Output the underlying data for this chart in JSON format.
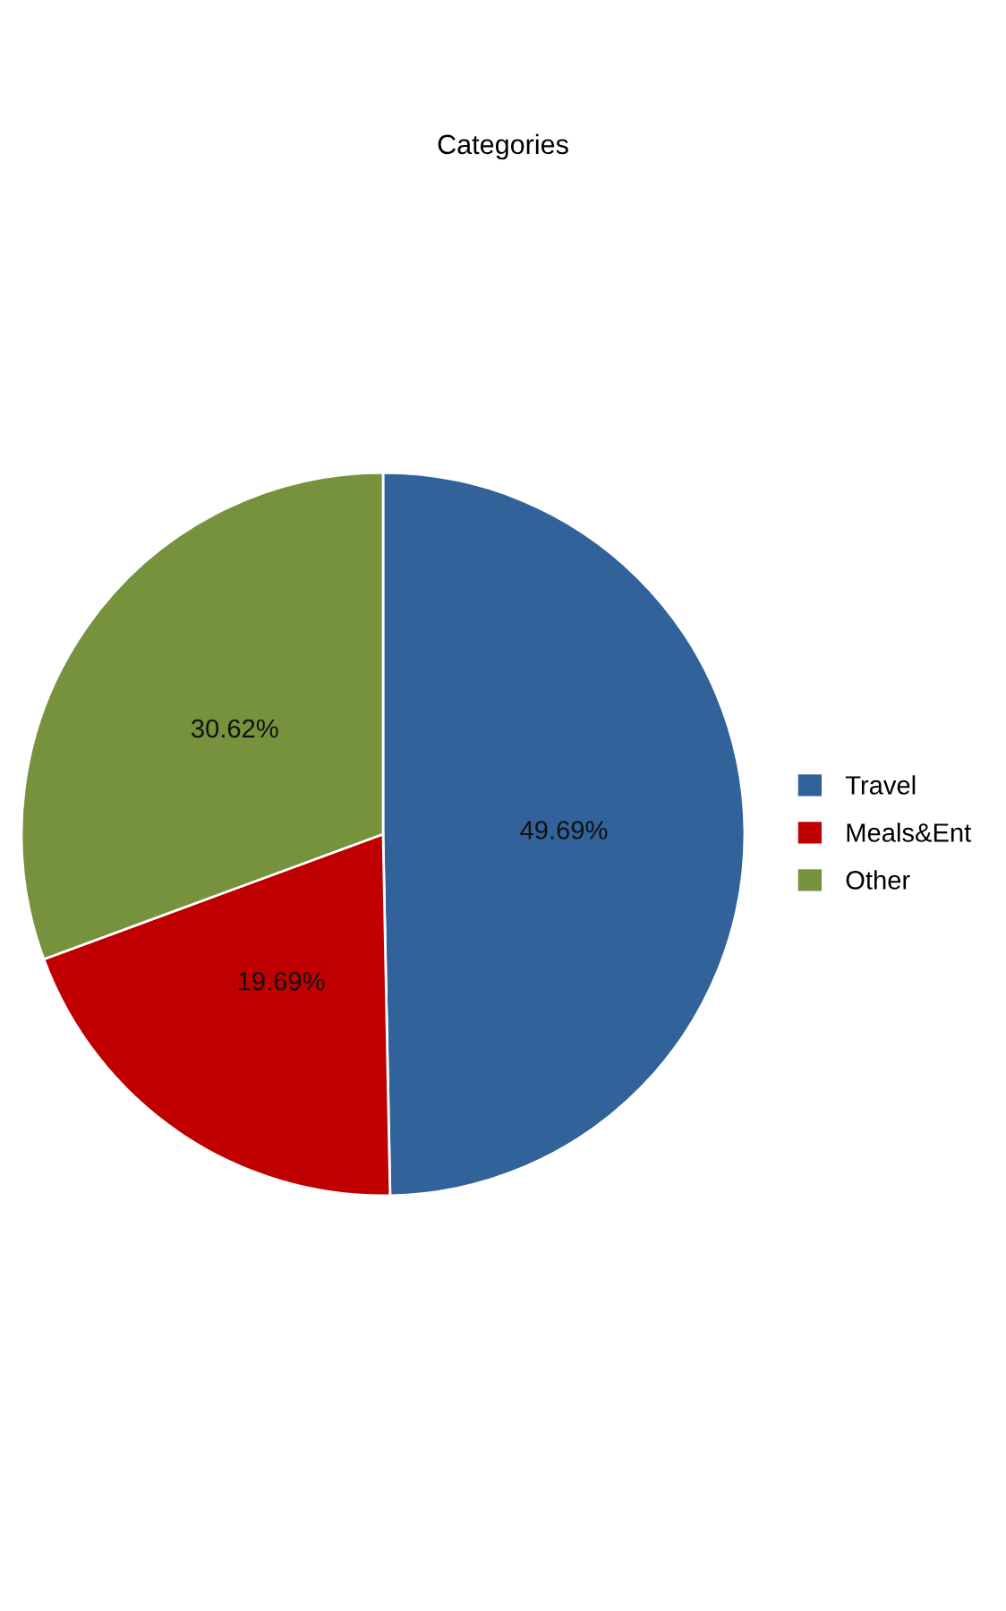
{
  "chart_data": {
    "type": "pie",
    "title": "Categories",
    "categories": [
      "Travel",
      "Meals&Ent",
      "Other"
    ],
    "values": [
      49.69,
      19.69,
      30.62
    ],
    "value_labels": [
      "49.69%",
      "19.69%",
      "30.62%"
    ],
    "colors": [
      "#31629a",
      "#c00000",
      "#76923c"
    ],
    "legend": "right"
  }
}
